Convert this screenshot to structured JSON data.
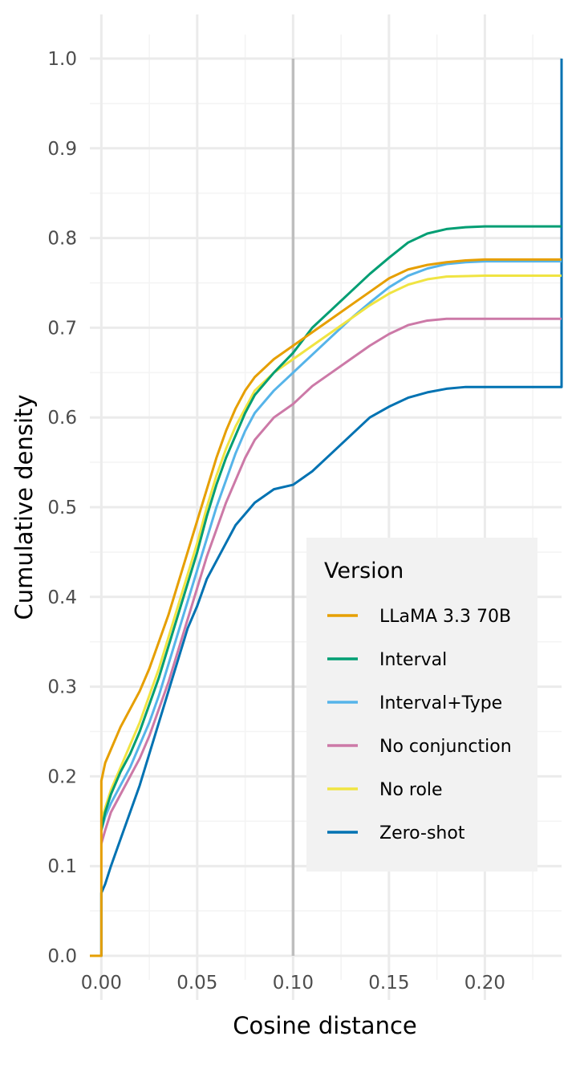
{
  "chart_data": {
    "type": "line",
    "xlabel": "Cosine distance",
    "ylabel": "Cumulative density",
    "xlim": [
      -0.006,
      0.24
    ],
    "ylim": [
      0,
      1
    ],
    "x_ticks": [
      "0.00",
      "0.05",
      "0.10",
      "0.15",
      "0.20"
    ],
    "x_tick_values": [
      0,
      0.05,
      0.1,
      0.15,
      0.2
    ],
    "y_ticks": [
      "0.0",
      "0.1",
      "0.2",
      "0.3",
      "0.4",
      "0.5",
      "0.6",
      "0.7",
      "0.8",
      "0.9",
      "1.0"
    ],
    "y_tick_values": [
      0,
      0.1,
      0.2,
      0.3,
      0.4,
      0.5,
      0.6,
      0.7,
      0.8,
      0.9,
      1.0
    ],
    "grid": true,
    "reference_line": {
      "x": 0.1,
      "color": "#bebebe"
    },
    "legend": {
      "title": "Version",
      "placement": "right"
    },
    "series": [
      {
        "name": "LLaMA 3.3 70B",
        "color": "#E69F00",
        "points": [
          [
            -0.006,
            0
          ],
          [
            0,
            0
          ],
          [
            0,
            0.195
          ],
          [
            0.002,
            0.215
          ],
          [
            0.005,
            0.23
          ],
          [
            0.01,
            0.255
          ],
          [
            0.015,
            0.275
          ],
          [
            0.02,
            0.295
          ],
          [
            0.025,
            0.32
          ],
          [
            0.03,
            0.35
          ],
          [
            0.035,
            0.38
          ],
          [
            0.04,
            0.415
          ],
          [
            0.045,
            0.45
          ],
          [
            0.05,
            0.485
          ],
          [
            0.055,
            0.52
          ],
          [
            0.06,
            0.555
          ],
          [
            0.065,
            0.585
          ],
          [
            0.07,
            0.61
          ],
          [
            0.075,
            0.63
          ],
          [
            0.08,
            0.645
          ],
          [
            0.09,
            0.665
          ],
          [
            0.1,
            0.68
          ],
          [
            0.11,
            0.695
          ],
          [
            0.12,
            0.71
          ],
          [
            0.13,
            0.725
          ],
          [
            0.14,
            0.74
          ],
          [
            0.15,
            0.755
          ],
          [
            0.16,
            0.765
          ],
          [
            0.17,
            0.77
          ],
          [
            0.18,
            0.773
          ],
          [
            0.19,
            0.775
          ],
          [
            0.2,
            0.776
          ],
          [
            0.24,
            0.776
          ]
        ]
      },
      {
        "name": "Interval",
        "color": "#009E73",
        "points": [
          [
            0,
            0.14
          ],
          [
            0.002,
            0.16
          ],
          [
            0.005,
            0.18
          ],
          [
            0.01,
            0.205
          ],
          [
            0.015,
            0.225
          ],
          [
            0.02,
            0.25
          ],
          [
            0.025,
            0.28
          ],
          [
            0.03,
            0.31
          ],
          [
            0.035,
            0.345
          ],
          [
            0.04,
            0.38
          ],
          [
            0.045,
            0.415
          ],
          [
            0.05,
            0.45
          ],
          [
            0.055,
            0.49
          ],
          [
            0.06,
            0.525
          ],
          [
            0.065,
            0.555
          ],
          [
            0.07,
            0.58
          ],
          [
            0.075,
            0.605
          ],
          [
            0.08,
            0.625
          ],
          [
            0.09,
            0.65
          ],
          [
            0.1,
            0.672
          ],
          [
            0.11,
            0.7
          ],
          [
            0.12,
            0.72
          ],
          [
            0.13,
            0.74
          ],
          [
            0.14,
            0.76
          ],
          [
            0.15,
            0.778
          ],
          [
            0.16,
            0.795
          ],
          [
            0.17,
            0.805
          ],
          [
            0.18,
            0.81
          ],
          [
            0.19,
            0.812
          ],
          [
            0.2,
            0.813
          ],
          [
            0.24,
            0.813
          ]
        ]
      },
      {
        "name": "Interval+Type",
        "color": "#56B4E9",
        "points": [
          [
            0,
            0.14
          ],
          [
            0.002,
            0.155
          ],
          [
            0.005,
            0.17
          ],
          [
            0.01,
            0.19
          ],
          [
            0.015,
            0.21
          ],
          [
            0.02,
            0.235
          ],
          [
            0.025,
            0.26
          ],
          [
            0.03,
            0.29
          ],
          [
            0.035,
            0.325
          ],
          [
            0.04,
            0.36
          ],
          [
            0.045,
            0.395
          ],
          [
            0.05,
            0.43
          ],
          [
            0.055,
            0.465
          ],
          [
            0.06,
            0.5
          ],
          [
            0.065,
            0.53
          ],
          [
            0.07,
            0.56
          ],
          [
            0.075,
            0.585
          ],
          [
            0.08,
            0.605
          ],
          [
            0.09,
            0.63
          ],
          [
            0.1,
            0.65
          ],
          [
            0.11,
            0.67
          ],
          [
            0.12,
            0.69
          ],
          [
            0.13,
            0.71
          ],
          [
            0.14,
            0.728
          ],
          [
            0.15,
            0.745
          ],
          [
            0.16,
            0.758
          ],
          [
            0.17,
            0.766
          ],
          [
            0.18,
            0.771
          ],
          [
            0.19,
            0.773
          ],
          [
            0.2,
            0.774
          ],
          [
            0.24,
            0.774
          ]
        ]
      },
      {
        "name": "No conjunction",
        "color": "#CC79A7",
        "points": [
          [
            0,
            0.125
          ],
          [
            0.002,
            0.14
          ],
          [
            0.005,
            0.16
          ],
          [
            0.01,
            0.18
          ],
          [
            0.015,
            0.2
          ],
          [
            0.02,
            0.22
          ],
          [
            0.025,
            0.245
          ],
          [
            0.03,
            0.275
          ],
          [
            0.035,
            0.305
          ],
          [
            0.04,
            0.34
          ],
          [
            0.045,
            0.375
          ],
          [
            0.05,
            0.41
          ],
          [
            0.055,
            0.445
          ],
          [
            0.06,
            0.475
          ],
          [
            0.065,
            0.505
          ],
          [
            0.07,
            0.53
          ],
          [
            0.075,
            0.555
          ],
          [
            0.08,
            0.575
          ],
          [
            0.09,
            0.6
          ],
          [
            0.1,
            0.615
          ],
          [
            0.11,
            0.635
          ],
          [
            0.12,
            0.65
          ],
          [
            0.13,
            0.665
          ],
          [
            0.14,
            0.68
          ],
          [
            0.15,
            0.693
          ],
          [
            0.16,
            0.703
          ],
          [
            0.17,
            0.708
          ],
          [
            0.18,
            0.71
          ],
          [
            0.2,
            0.71
          ],
          [
            0.24,
            0.71
          ]
        ]
      },
      {
        "name": "No role",
        "color": "#F0E442",
        "points": [
          [
            0,
            0.15
          ],
          [
            0.002,
            0.165
          ],
          [
            0.005,
            0.185
          ],
          [
            0.01,
            0.21
          ],
          [
            0.015,
            0.235
          ],
          [
            0.02,
            0.26
          ],
          [
            0.025,
            0.29
          ],
          [
            0.03,
            0.32
          ],
          [
            0.035,
            0.355
          ],
          [
            0.04,
            0.39
          ],
          [
            0.045,
            0.425
          ],
          [
            0.05,
            0.46
          ],
          [
            0.055,
            0.5
          ],
          [
            0.06,
            0.535
          ],
          [
            0.065,
            0.565
          ],
          [
            0.07,
            0.59
          ],
          [
            0.075,
            0.61
          ],
          [
            0.08,
            0.63
          ],
          [
            0.09,
            0.65
          ],
          [
            0.1,
            0.665
          ],
          [
            0.11,
            0.68
          ],
          [
            0.12,
            0.695
          ],
          [
            0.13,
            0.71
          ],
          [
            0.14,
            0.725
          ],
          [
            0.15,
            0.738
          ],
          [
            0.16,
            0.748
          ],
          [
            0.17,
            0.754
          ],
          [
            0.18,
            0.757
          ],
          [
            0.2,
            0.758
          ],
          [
            0.24,
            0.758
          ]
        ]
      },
      {
        "name": "Zero-shot",
        "color": "#0072B2",
        "points": [
          [
            -0.006,
            0
          ],
          [
            0,
            0
          ],
          [
            0,
            0.07
          ],
          [
            0.002,
            0.08
          ],
          [
            0.005,
            0.1
          ],
          [
            0.01,
            0.13
          ],
          [
            0.015,
            0.16
          ],
          [
            0.02,
            0.19
          ],
          [
            0.025,
            0.225
          ],
          [
            0.03,
            0.26
          ],
          [
            0.035,
            0.295
          ],
          [
            0.04,
            0.33
          ],
          [
            0.045,
            0.365
          ],
          [
            0.05,
            0.39
          ],
          [
            0.055,
            0.42
          ],
          [
            0.06,
            0.44
          ],
          [
            0.065,
            0.46
          ],
          [
            0.07,
            0.48
          ],
          [
            0.08,
            0.505
          ],
          [
            0.09,
            0.52
          ],
          [
            0.1,
            0.525
          ],
          [
            0.11,
            0.54
          ],
          [
            0.12,
            0.56
          ],
          [
            0.13,
            0.58
          ],
          [
            0.14,
            0.6
          ],
          [
            0.15,
            0.612
          ],
          [
            0.16,
            0.622
          ],
          [
            0.17,
            0.628
          ],
          [
            0.18,
            0.632
          ],
          [
            0.19,
            0.634
          ],
          [
            0.24,
            0.634
          ],
          [
            0.24,
            1.0
          ]
        ]
      }
    ]
  }
}
